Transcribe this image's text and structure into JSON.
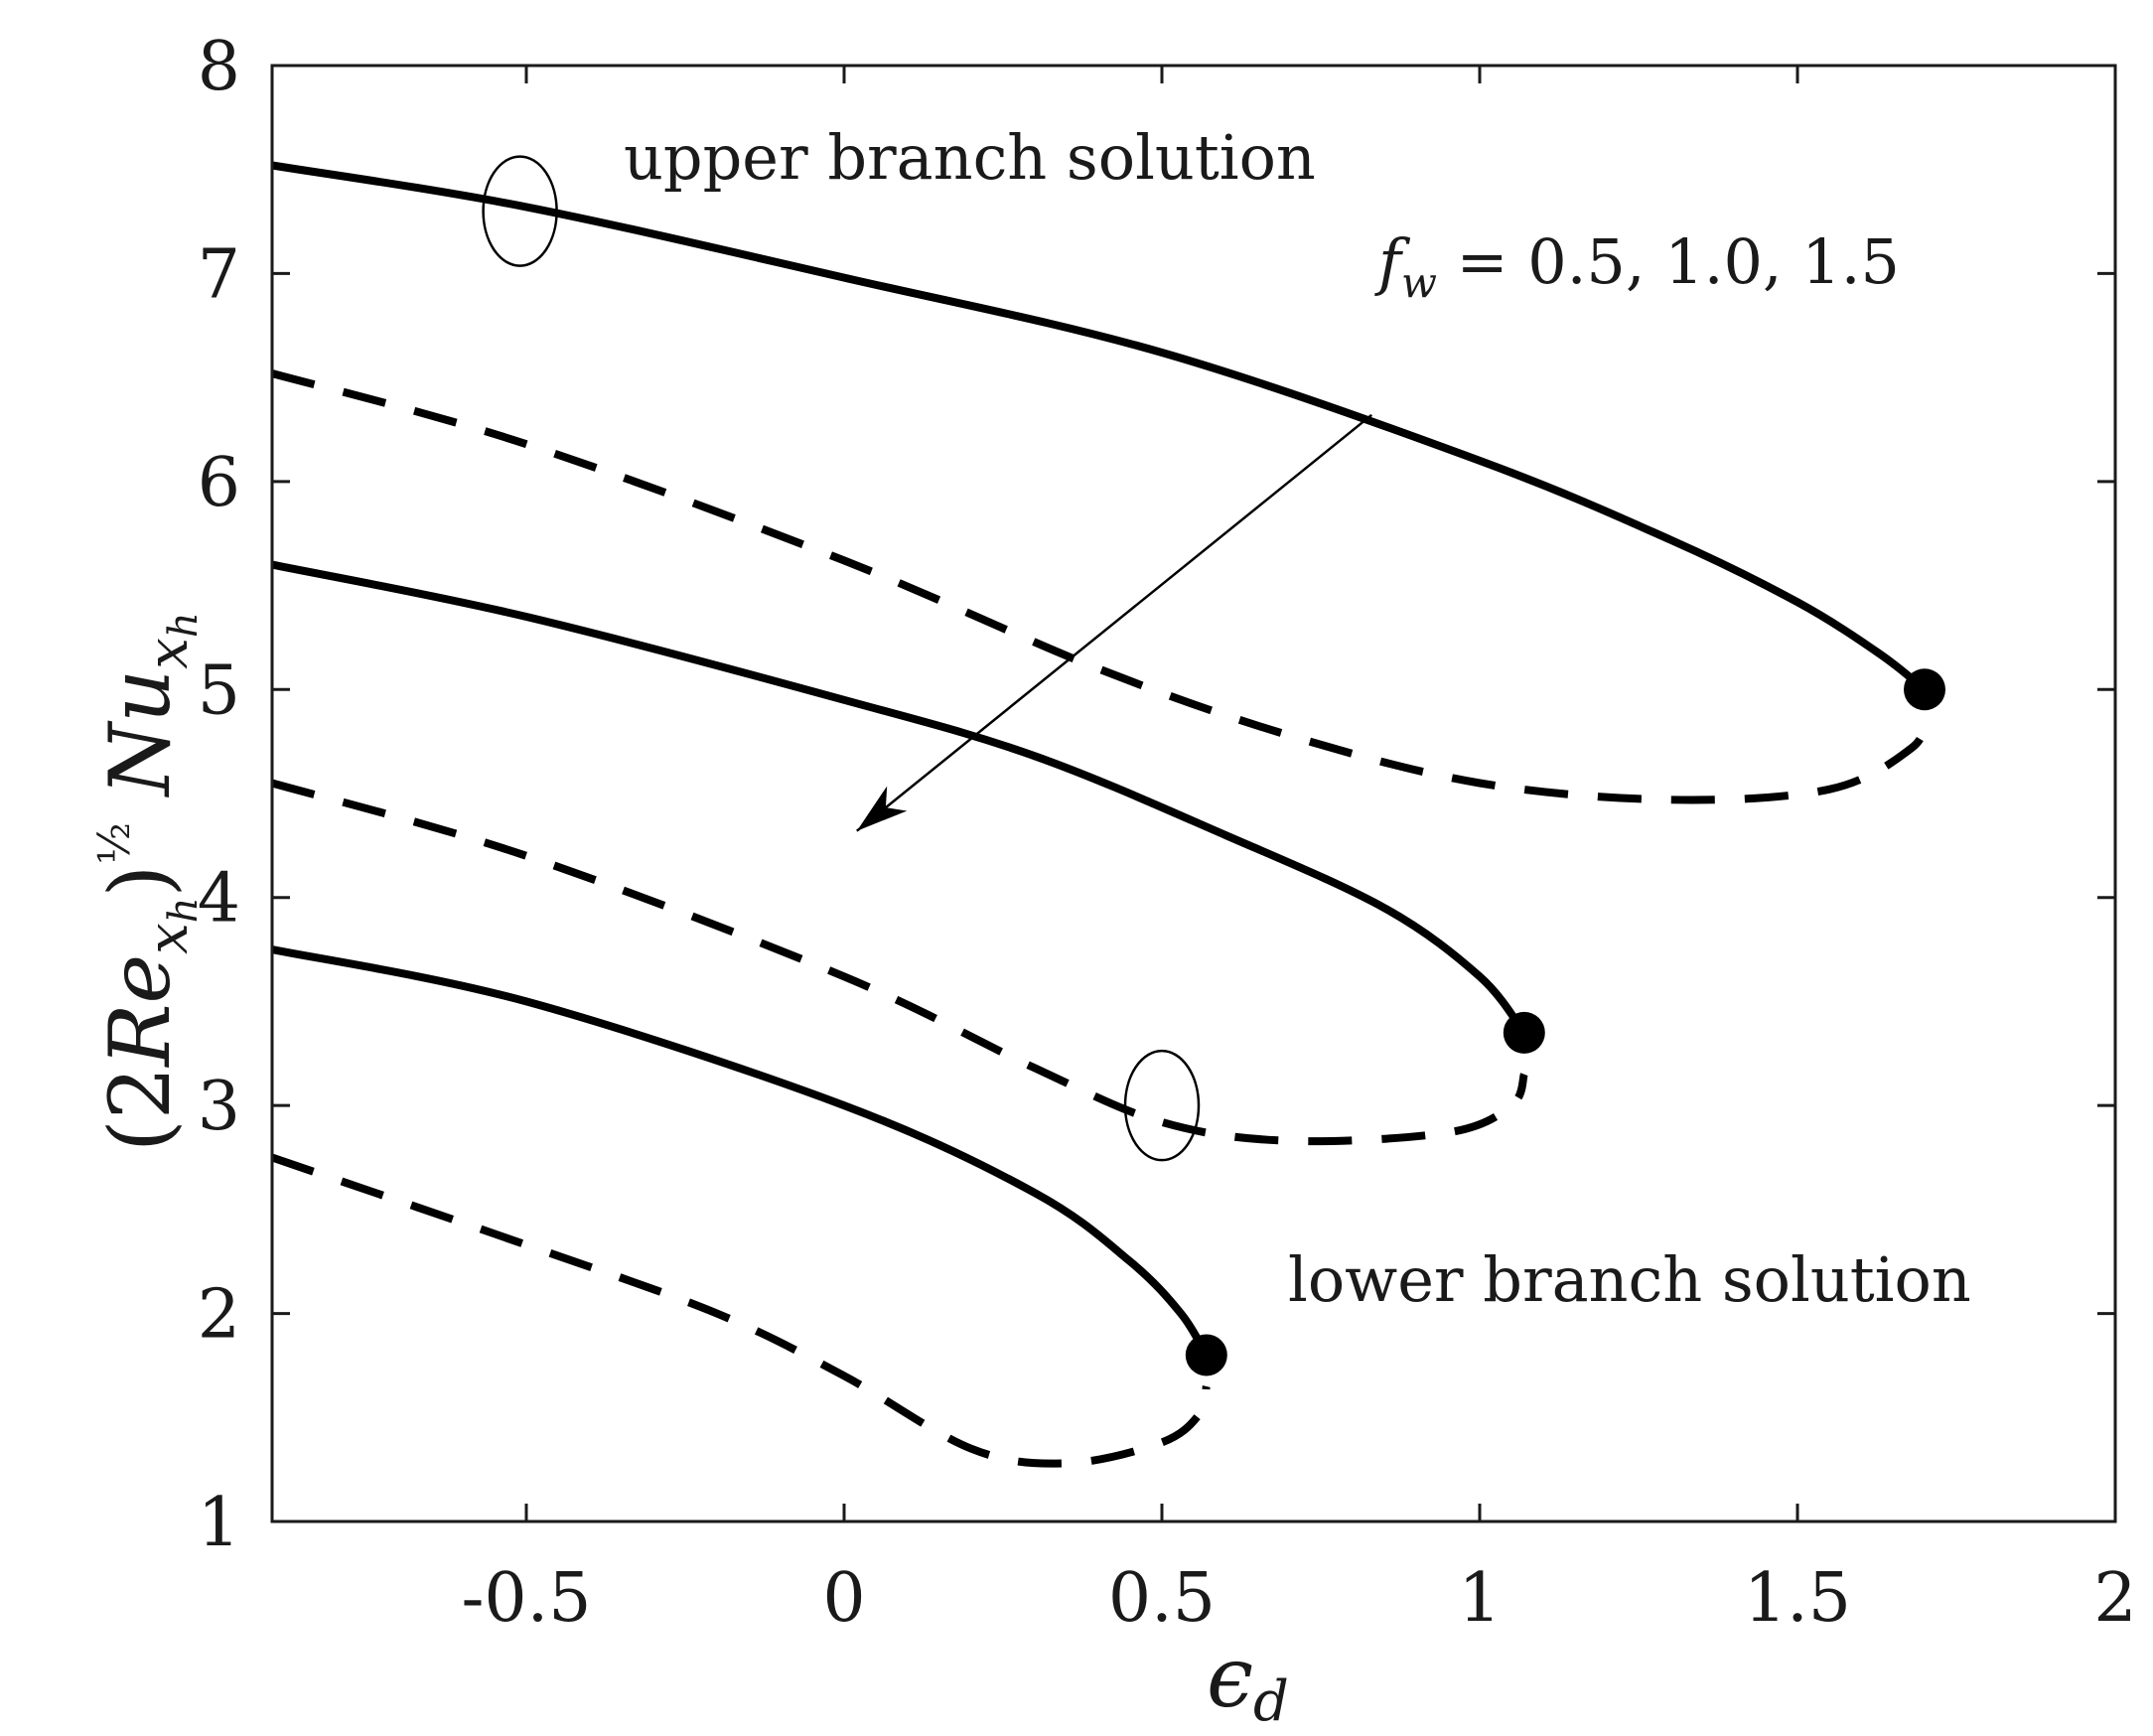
{
  "chart_data": {
    "type": "line",
    "xlabel": "ε_d",
    "ylabel_parts": {
      "open": "(2Re",
      "sub1": "x",
      "sub1sub": "h",
      "close": ")",
      "exp_num": "1",
      "exp_den": "2",
      "mid": "Nu",
      "sub2": "x",
      "sub2sub": "h"
    },
    "xlim": [
      -0.9,
      2
    ],
    "ylim": [
      1,
      8
    ],
    "xticks": [
      -0.5,
      0,
      0.5,
      1,
      1.5,
      2
    ],
    "xtick_labels": [
      "-0.5",
      "0",
      "0.5",
      "1",
      "1.5",
      "2"
    ],
    "yticks": [
      1,
      2,
      3,
      4,
      5,
      6,
      7,
      8
    ],
    "ytick_labels": [
      "1",
      "2",
      "3",
      "4",
      "5",
      "6",
      "7",
      "8"
    ],
    "grid": false,
    "annotations": {
      "upper": "upper branch solution",
      "lower": "lower branch solution",
      "param": "f_w = 0.5, 1.0, 1.5"
    },
    "series": [
      {
        "branch": "upper",
        "style": "solid",
        "x": [
          -0.9,
          -0.5,
          0,
          0.5,
          1.0,
          1.3,
          1.5,
          1.63,
          1.7
        ],
        "y": [
          7.52,
          7.32,
          6.98,
          6.62,
          6.1,
          5.72,
          5.42,
          5.17,
          5.0
        ]
      },
      {
        "branch": "lower",
        "style": "dashed",
        "x": [
          -0.9,
          -0.5,
          0,
          0.4,
          0.7,
          1.0,
          1.3,
          1.55,
          1.68,
          1.7
        ],
        "y": [
          6.52,
          6.18,
          5.62,
          5.1,
          4.78,
          4.55,
          4.47,
          4.52,
          4.72,
          4.87
        ]
      },
      {
        "branch": "upper",
        "style": "solid",
        "x": [
          -0.9,
          -0.5,
          0,
          0.3,
          0.6,
          0.85,
          1.0,
          1.07
        ],
        "y": [
          5.6,
          5.35,
          4.95,
          4.68,
          4.3,
          3.95,
          3.62,
          3.35
        ]
      },
      {
        "branch": "lower",
        "style": "dashed",
        "x": [
          -0.9,
          -0.5,
          0,
          0.3,
          0.5,
          0.7,
          0.95,
          1.05,
          1.07
        ],
        "y": [
          4.55,
          4.2,
          3.62,
          3.18,
          2.92,
          2.83,
          2.87,
          3.0,
          3.15
        ]
      },
      {
        "branch": "upper",
        "style": "solid",
        "x": [
          -0.9,
          -0.5,
          0,
          0.3,
          0.45,
          0.53,
          0.57
        ],
        "y": [
          3.75,
          3.5,
          3.0,
          2.58,
          2.25,
          2.0,
          1.8
        ]
      },
      {
        "branch": "lower",
        "style": "dashed",
        "x": [
          -0.9,
          -0.5,
          -0.2,
          0,
          0.2,
          0.35,
          0.5,
          0.56,
          0.57
        ],
        "y": [
          2.75,
          2.33,
          2.0,
          1.7,
          1.35,
          1.28,
          1.38,
          1.52,
          1.65
        ]
      }
    ],
    "critical_points": [
      {
        "x": 1.7,
        "y": 5.0
      },
      {
        "x": 1.07,
        "y": 3.35
      },
      {
        "x": 0.57,
        "y": 1.8
      }
    ],
    "ellipse_markers": [
      {
        "x": -0.51,
        "y": 7.3
      },
      {
        "x": 0.5,
        "y": 3.0
      }
    ],
    "arrow": {
      "from": [
        0.83,
        6.32
      ],
      "to": [
        0.02,
        4.32
      ]
    }
  }
}
